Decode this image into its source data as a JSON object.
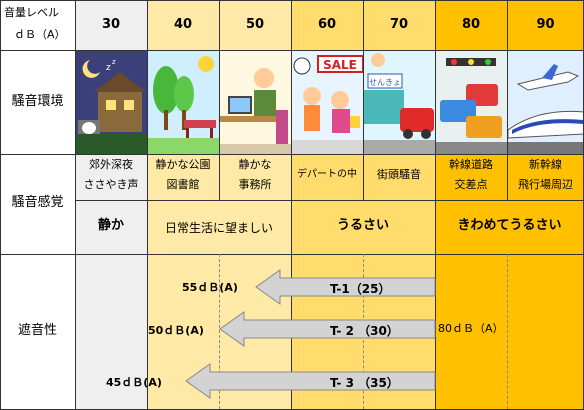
{
  "header": {
    "corner_label_1": "音量レベル",
    "corner_label_2": "ｄＢ（A）",
    "levels": [
      "30",
      "40",
      "50",
      "60",
      "70",
      "80",
      "90"
    ]
  },
  "rows": {
    "environment": "騒音環境",
    "perception": "騒音感覚",
    "insulation": "遮音性"
  },
  "examples": {
    "c30": [
      "郊外深夜",
      "ささやき声"
    ],
    "c40": [
      "静かな公園",
      "図書館"
    ],
    "c50": [
      "静かな",
      "事務所"
    ],
    "c60": [
      "デパートの中"
    ],
    "c70": [
      "街頭騒音"
    ],
    "c80": [
      "幹線道路",
      "交差点"
    ],
    "c90": [
      "新幹線",
      "飛行場周辺"
    ]
  },
  "feelings": {
    "quiet": "静か",
    "desirable": "日常生活に望ましい",
    "noisy": "うるさい",
    "very_noisy": "きわめてうるさい"
  },
  "picture_text": {
    "sale_sign": "SALE",
    "shop_sign": "せんきょ"
  },
  "insulation": {
    "source": "80ｄＢ（A）",
    "arrows": [
      {
        "label": "T-1（25）",
        "result": "55ｄＢ(A)"
      },
      {
        "label": "T- 2 （30）",
        "result": "50ｄＢ(A)"
      },
      {
        "label": "T- 3 （35）",
        "result": "45ｄＢ(A)"
      }
    ]
  },
  "colors": {
    "c30": "#efefef",
    "c40_50": "#ffe9a6",
    "c60_70": "#ffdc6b",
    "c80_90": "#ffc000",
    "arrow": "#d3d3d3"
  }
}
